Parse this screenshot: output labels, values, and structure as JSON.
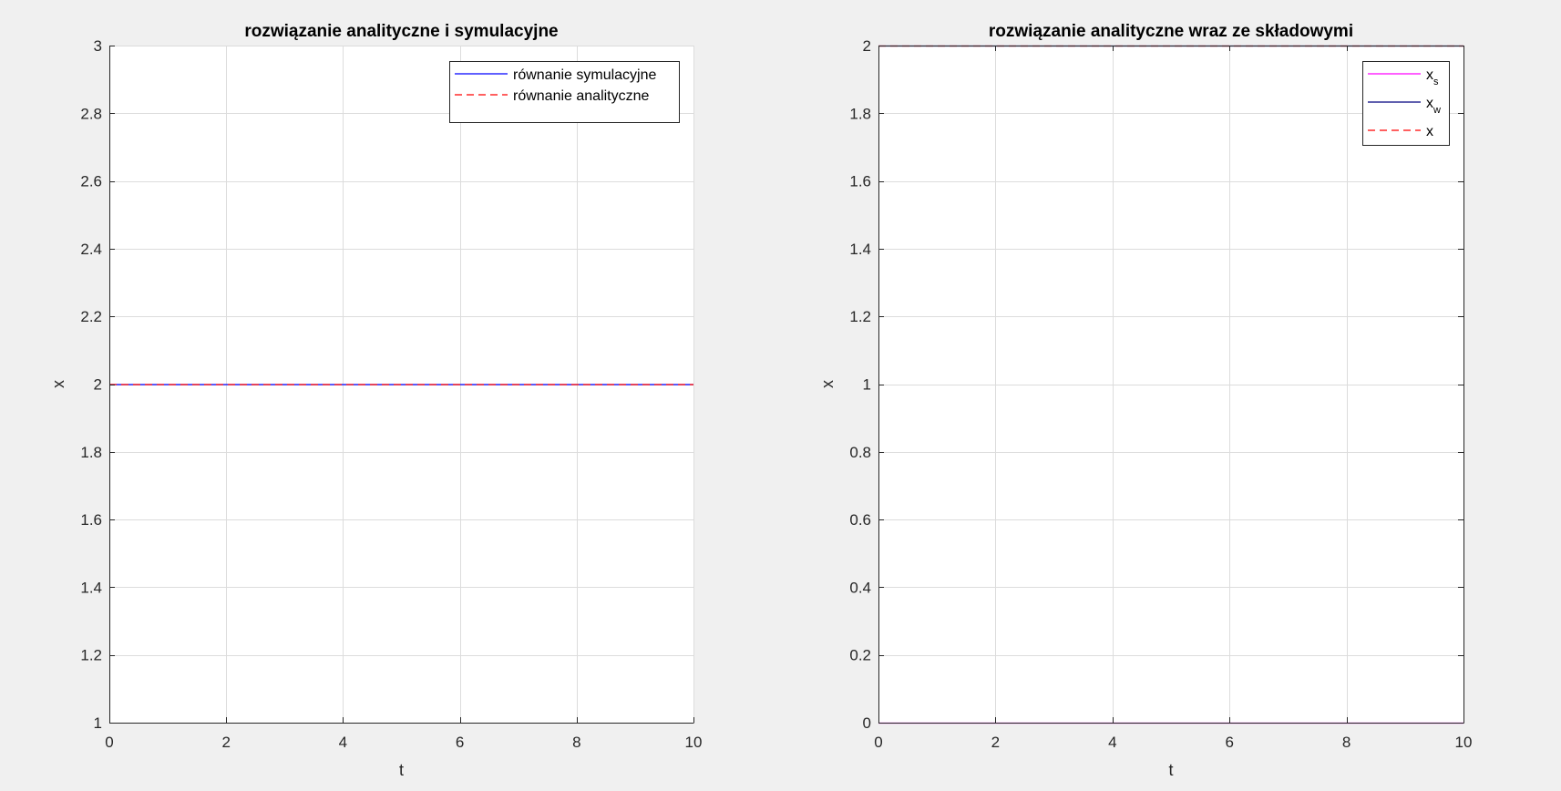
{
  "chart_data": [
    {
      "type": "line",
      "title": "rozwiązanie analityczne i symulacyjne",
      "xlabel": "t",
      "ylabel": "x",
      "xlim": [
        0,
        10
      ],
      "ylim": [
        1,
        3
      ],
      "xticks": [
        0,
        2,
        4,
        6,
        8,
        10
      ],
      "yticks": [
        1,
        1.2,
        1.4,
        1.6,
        1.8,
        2,
        2.2,
        2.4,
        2.6,
        2.8,
        3
      ],
      "grid": true,
      "box": "bottom-left",
      "legend_position": "top-right",
      "series": [
        {
          "name": "równanie symulacyjne",
          "color": "#0000ff",
          "style": "solid",
          "x": [
            0,
            10
          ],
          "y": [
            2,
            2
          ]
        },
        {
          "name": "równanie analityczne",
          "color": "#ff0000",
          "style": "dashed",
          "x": [
            0,
            10
          ],
          "y": [
            2,
            2
          ]
        }
      ]
    },
    {
      "type": "line",
      "title": "rozwiązanie analityczne wraz ze składowymi",
      "xlabel": "t",
      "ylabel": "x",
      "xlim": [
        0,
        10
      ],
      "ylim": [
        0,
        2
      ],
      "xticks": [
        0,
        2,
        4,
        6,
        8,
        10
      ],
      "yticks": [
        0,
        0.2,
        0.4,
        0.6,
        0.8,
        1,
        1.2,
        1.4,
        1.6,
        1.8,
        2
      ],
      "grid": true,
      "box": "full",
      "legend_position": "top-right",
      "series": [
        {
          "name": "x",
          "subscript": "s",
          "color": "#ff00ff",
          "style": "solid",
          "x": [
            0,
            10
          ],
          "y": [
            0,
            0
          ]
        },
        {
          "name": "x",
          "subscript": "w",
          "color": "#00007f",
          "style": "solid",
          "x": [
            0,
            10
          ],
          "y": [
            2,
            2
          ]
        },
        {
          "name": "x",
          "subscript": "",
          "color": "#ff0000",
          "style": "dashed",
          "x": [
            0,
            10
          ],
          "y": [
            2,
            2
          ]
        }
      ]
    }
  ]
}
